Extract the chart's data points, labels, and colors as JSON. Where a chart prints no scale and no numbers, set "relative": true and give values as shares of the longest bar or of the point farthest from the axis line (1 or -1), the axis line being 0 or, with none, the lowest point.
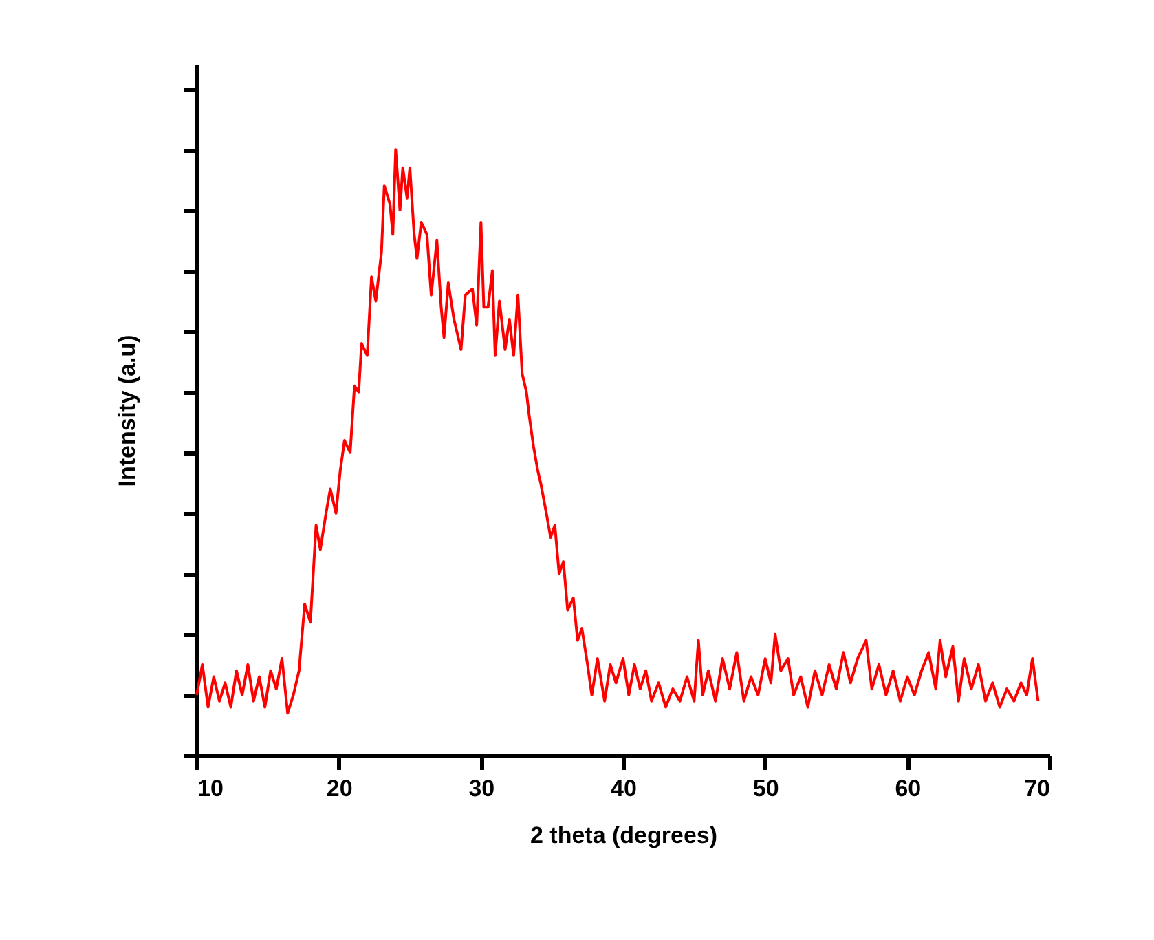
{
  "chart_data": {
    "type": "line",
    "xlabel": "2 theta (degrees)",
    "ylabel": "Intensity (a.u)",
    "relative": true,
    "xlim": [
      10,
      70
    ],
    "xticks": [
      10,
      20,
      30,
      40,
      50,
      60,
      70
    ],
    "grid": false,
    "marker": "none",
    "line_style": "solid",
    "series": [
      {
        "color": "#ff0000",
        "x": [
          10,
          10.4,
          10.8,
          11.2,
          11.6,
          12,
          12.4,
          12.8,
          13.2,
          13.6,
          14,
          14.4,
          14.8,
          15.2,
          15.6,
          16,
          16.4,
          16.8,
          17.2,
          17.6,
          18,
          18.4,
          18.7,
          19.1,
          19.4,
          19.8,
          20.1,
          20.4,
          20.8,
          21.1,
          21.4,
          21.6,
          22,
          22.3,
          22.6,
          23.0,
          23.2,
          23.6,
          23.8,
          24.0,
          24.3,
          24.5,
          24.8,
          25.0,
          25.3,
          25.5,
          25.8,
          26.2,
          26.5,
          26.9,
          27.2,
          27.4,
          27.7,
          28.1,
          28.6,
          28.9,
          29.4,
          29.7,
          30.0,
          30.2,
          30.5,
          30.8,
          31.0,
          31.3,
          31.7,
          32.0,
          32.3,
          32.6,
          32.9,
          33.2,
          33.4,
          33.7,
          34.0,
          34.2,
          34.6,
          34.9,
          35.2,
          35.5,
          35.8,
          36.1,
          36.5,
          36.8,
          37.1,
          37.5,
          37.8,
          38.2,
          38.7,
          39.1,
          39.5,
          40,
          40.4,
          40.8,
          41.2,
          41.6,
          42,
          42.5,
          43,
          43.5,
          44,
          44.5,
          45,
          45.3,
          45.6,
          46,
          46.5,
          47,
          47.5,
          48,
          48.5,
          49,
          49.5,
          50,
          50.4,
          50.7,
          51.1,
          51.6,
          52,
          52.5,
          53,
          53.5,
          54,
          54.5,
          55,
          55.5,
          56,
          56.5,
          57.1,
          57.5,
          58,
          58.5,
          59,
          59.5,
          60,
          60.5,
          61,
          61.5,
          62,
          62.3,
          62.7,
          63.2,
          63.6,
          64,
          64.5,
          65,
          65.5,
          66,
          66.5,
          67,
          67.5,
          68,
          68.4,
          68.8,
          69.2
        ],
        "values": [
          0.1,
          0.15,
          0.08,
          0.13,
          0.09,
          0.12,
          0.08,
          0.14,
          0.1,
          0.15,
          0.09,
          0.13,
          0.08,
          0.14,
          0.11,
          0.16,
          0.07,
          0.1,
          0.14,
          0.25,
          0.22,
          0.38,
          0.34,
          0.4,
          0.44,
          0.4,
          0.47,
          0.52,
          0.5,
          0.61,
          0.6,
          0.68,
          0.66,
          0.79,
          0.75,
          0.83,
          0.94,
          0.91,
          0.86,
          1.0,
          0.9,
          0.97,
          0.92,
          0.97,
          0.86,
          0.82,
          0.88,
          0.86,
          0.76,
          0.85,
          0.74,
          0.69,
          0.78,
          0.72,
          0.67,
          0.76,
          0.77,
          0.71,
          0.88,
          0.74,
          0.74,
          0.8,
          0.66,
          0.75,
          0.67,
          0.72,
          0.66,
          0.76,
          0.63,
          0.6,
          0.56,
          0.51,
          0.47,
          0.45,
          0.4,
          0.36,
          0.38,
          0.3,
          0.32,
          0.24,
          0.26,
          0.19,
          0.21,
          0.15,
          0.1,
          0.16,
          0.09,
          0.15,
          0.12,
          0.16,
          0.1,
          0.15,
          0.11,
          0.14,
          0.09,
          0.12,
          0.08,
          0.11,
          0.09,
          0.13,
          0.09,
          0.19,
          0.1,
          0.14,
          0.09,
          0.16,
          0.11,
          0.17,
          0.09,
          0.13,
          0.1,
          0.16,
          0.12,
          0.2,
          0.14,
          0.16,
          0.1,
          0.13,
          0.08,
          0.14,
          0.1,
          0.15,
          0.11,
          0.17,
          0.12,
          0.16,
          0.19,
          0.11,
          0.15,
          0.1,
          0.14,
          0.09,
          0.13,
          0.1,
          0.14,
          0.17,
          0.11,
          0.19,
          0.13,
          0.18,
          0.09,
          0.16,
          0.11,
          0.15,
          0.09,
          0.12,
          0.08,
          0.11,
          0.09,
          0.12,
          0.1,
          0.16,
          0.09
        ]
      }
    ]
  }
}
